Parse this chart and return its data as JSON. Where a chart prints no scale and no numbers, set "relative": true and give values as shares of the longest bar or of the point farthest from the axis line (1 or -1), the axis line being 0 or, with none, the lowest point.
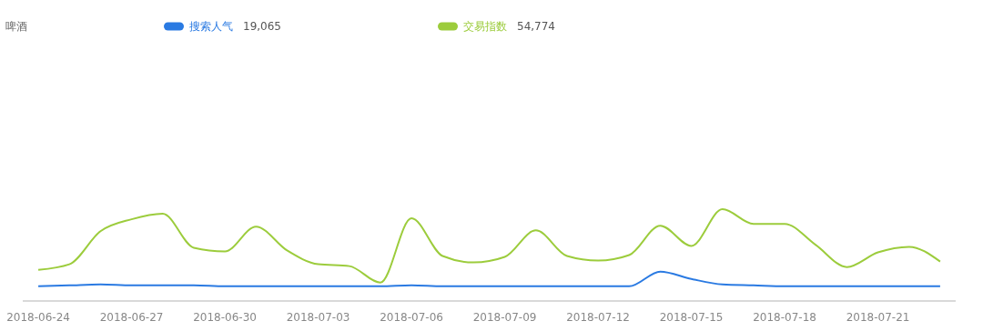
{
  "chart_data": {
    "type": "line",
    "title": "啤酒",
    "relative": true,
    "legend": "top",
    "marker": "none",
    "line_style": "solid",
    "x": [
      "2018-06-24",
      "2018-06-25",
      "2018-06-26",
      "2018-06-27",
      "2018-06-28",
      "2018-06-29",
      "2018-06-30",
      "2018-07-01",
      "2018-07-02",
      "2018-07-03",
      "2018-07-04",
      "2018-07-05",
      "2018-07-06",
      "2018-07-07",
      "2018-07-08",
      "2018-07-09",
      "2018-07-10",
      "2018-07-11",
      "2018-07-12",
      "2018-07-13",
      "2018-07-14",
      "2018-07-15",
      "2018-07-16",
      "2018-07-17",
      "2018-07-18",
      "2018-07-19",
      "2018-07-20",
      "2018-07-21",
      "2018-07-22",
      "2018-07-23"
    ],
    "xlim": [
      "2018-06-23T12:00",
      "2018-07-23T12:00"
    ],
    "xticks": [
      "2018-06-24",
      "2018-06-27",
      "2018-06-30",
      "2018-07-03",
      "2018-07-06",
      "2018-07-09",
      "2018-07-12",
      "2018-07-15",
      "2018-07-18",
      "2018-07-21"
    ],
    "series": [
      {
        "name": "搜索人气",
        "color": "#2a7ae2",
        "values": [
          0.16,
          0.17,
          0.18,
          0.17,
          0.17,
          0.17,
          0.16,
          0.16,
          0.16,
          0.16,
          0.16,
          0.16,
          0.17,
          0.16,
          0.16,
          0.16,
          0.16,
          0.16,
          0.16,
          0.16,
          0.32,
          0.24,
          0.18,
          0.17,
          0.16,
          0.16,
          0.16,
          0.16,
          0.16,
          0.16
        ]
      },
      {
        "name": "交易指数",
        "color": "#9ccc3c",
        "values": [
          0.34,
          0.4,
          0.76,
          0.89,
          0.95,
          0.58,
          0.54,
          0.81,
          0.55,
          0.4,
          0.38,
          0.2,
          0.9,
          0.49,
          0.42,
          0.48,
          0.77,
          0.49,
          0.44,
          0.5,
          0.82,
          0.6,
          1,
          0.84,
          0.84,
          0.61,
          0.37,
          0.53,
          0.59,
          0.43
        ]
      }
    ],
    "annotations": [
      "19,065",
      "54,774"
    ]
  }
}
